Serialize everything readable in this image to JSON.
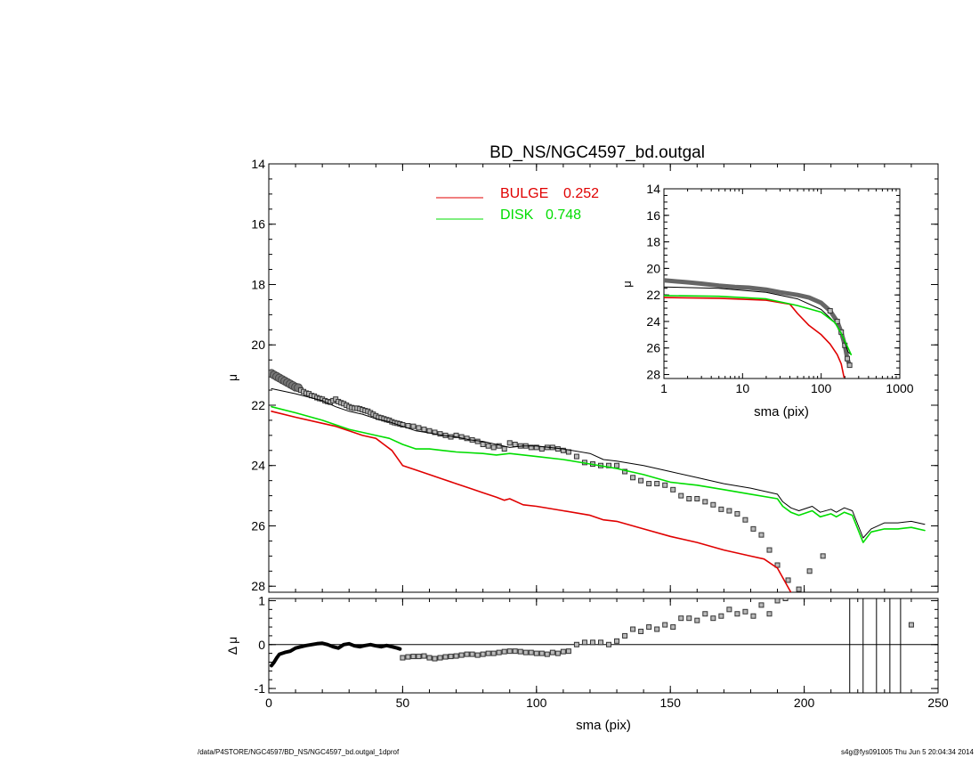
{
  "footer": {
    "left": "/data/P4STORE/NGC4597/BD_NS/NGC4597_bd.outgal_1dprof",
    "right": "s4g@fys091005  Thu Jun  5 20:04:34 2014"
  },
  "chart_data": [
    {
      "type": "line",
      "panel": "main",
      "title": "BD_NS/NGC4597_bd.outgal",
      "xlabel": "",
      "ylabel": "μ",
      "xlim": [
        0,
        250
      ],
      "ylim": [
        14,
        28.2
      ],
      "y_inverted": true,
      "xticks": [
        0,
        50,
        100,
        150,
        200,
        250
      ],
      "yticks": [
        14,
        16,
        18,
        20,
        22,
        24,
        26,
        28
      ],
      "legend_position": "top-center",
      "legend": [
        {
          "label": "BULGE",
          "value": "0.252",
          "color": "#e00000"
        },
        {
          "label": "DISK",
          "value": "0.748",
          "color": "#00dd00"
        }
      ],
      "series": [
        {
          "name": "data",
          "style": "squares",
          "color": "#333333",
          "x": [
            1,
            2,
            3,
            4,
            5,
            6,
            7,
            8,
            9,
            10,
            11,
            12,
            13,
            14,
            15,
            16,
            17,
            18,
            19,
            20,
            21,
            22,
            23,
            24,
            25,
            26,
            27,
            28,
            29,
            30,
            31,
            32,
            33,
            34,
            35,
            36,
            37,
            38,
            39,
            40,
            41,
            42,
            43,
            44,
            45,
            46,
            47,
            48,
            49,
            50,
            52,
            54,
            56,
            58,
            60,
            62,
            64,
            66,
            68,
            70,
            72,
            74,
            76,
            78,
            80,
            82,
            84,
            86,
            88,
            90,
            92,
            94,
            96,
            98,
            100,
            102,
            104,
            106,
            108,
            110,
            112,
            115,
            118,
            121,
            124,
            127,
            130,
            133,
            136,
            139,
            142,
            145,
            148,
            151,
            154,
            157,
            160,
            163,
            166,
            169,
            172,
            175,
            178,
            181,
            184,
            187,
            190,
            194,
            198,
            202,
            207
          ],
          "y": [
            20.95,
            21.0,
            21.05,
            21.1,
            21.15,
            21.2,
            21.25,
            21.3,
            21.35,
            21.4,
            21.42,
            21.5,
            21.55,
            21.6,
            21.62,
            21.68,
            21.7,
            21.75,
            21.78,
            21.8,
            21.85,
            21.88,
            21.9,
            21.85,
            21.8,
            21.88,
            21.92,
            21.95,
            22.0,
            22.05,
            22.08,
            22.1,
            22.1,
            22.12,
            22.15,
            22.18,
            22.2,
            22.25,
            22.3,
            22.35,
            22.4,
            22.42,
            22.45,
            22.48,
            22.5,
            22.55,
            22.58,
            22.6,
            22.62,
            22.65,
            22.68,
            22.7,
            22.75,
            22.8,
            22.85,
            22.9,
            22.95,
            23.0,
            23.05,
            23.0,
            23.05,
            23.1,
            23.15,
            23.2,
            23.3,
            23.35,
            23.4,
            23.35,
            23.45,
            23.25,
            23.3,
            23.35,
            23.35,
            23.4,
            23.4,
            23.45,
            23.4,
            23.4,
            23.45,
            23.5,
            23.55,
            23.7,
            23.9,
            23.95,
            24.0,
            24.0,
            24.0,
            24.2,
            24.4,
            24.5,
            24.6,
            24.6,
            24.65,
            24.8,
            25.0,
            25.1,
            25.1,
            25.2,
            25.3,
            25.45,
            25.5,
            25.6,
            25.8,
            26.1,
            26.3,
            26.8,
            27.3,
            27.8,
            28.1,
            27.5,
            27.0
          ]
        },
        {
          "name": "model",
          "style": "line",
          "color": "#000000",
          "x": [
            1,
            10,
            20,
            25,
            30,
            35,
            40,
            45,
            50,
            55,
            60,
            65,
            70,
            75,
            80,
            85,
            90,
            95,
            100,
            110,
            120,
            125,
            130,
            140,
            150,
            160,
            170,
            180,
            190,
            192,
            195,
            198,
            203,
            206,
            210,
            212,
            215,
            218,
            222,
            225,
            230,
            235,
            240,
            245
          ],
          "y": [
            21.45,
            21.62,
            21.85,
            22.05,
            22.2,
            22.3,
            22.45,
            22.55,
            22.7,
            22.85,
            22.92,
            23.0,
            23.05,
            23.15,
            23.2,
            23.3,
            23.4,
            23.35,
            23.35,
            23.45,
            23.6,
            23.8,
            23.85,
            24.0,
            24.2,
            24.4,
            24.6,
            24.75,
            24.95,
            25.2,
            25.4,
            25.5,
            25.35,
            25.55,
            25.45,
            25.55,
            25.4,
            25.5,
            26.4,
            26.1,
            25.9,
            25.9,
            25.85,
            25.95
          ]
        },
        {
          "name": "BULGE",
          "style": "line",
          "color": "#e00000",
          "x": [
            1,
            10,
            20,
            25,
            30,
            35,
            40,
            43,
            46,
            50,
            55,
            60,
            65,
            70,
            75,
            80,
            85,
            88,
            90,
            95,
            100,
            110,
            120,
            125,
            130,
            140,
            150,
            160,
            170,
            180,
            185,
            190,
            195
          ],
          "y": [
            22.2,
            22.4,
            22.6,
            22.7,
            22.85,
            23.0,
            23.1,
            23.3,
            23.5,
            24.0,
            24.15,
            24.3,
            24.45,
            24.6,
            24.75,
            24.9,
            25.05,
            25.15,
            25.1,
            25.3,
            25.35,
            25.5,
            25.65,
            25.8,
            25.85,
            26.1,
            26.35,
            26.55,
            26.8,
            27.0,
            27.1,
            27.4,
            28.2
          ]
        },
        {
          "name": "DISK",
          "style": "line",
          "color": "#00dd00",
          "x": [
            1,
            10,
            20,
            25,
            30,
            35,
            40,
            45,
            50,
            55,
            60,
            65,
            70,
            80,
            85,
            90,
            100,
            110,
            120,
            130,
            140,
            150,
            160,
            170,
            180,
            190,
            192,
            195,
            198,
            203,
            206,
            210,
            212,
            215,
            218,
            222,
            225,
            230,
            235,
            240,
            245
          ],
          "y": [
            22.05,
            22.25,
            22.5,
            22.65,
            22.8,
            22.9,
            23.0,
            23.1,
            23.3,
            23.45,
            23.45,
            23.5,
            23.55,
            23.6,
            23.65,
            23.6,
            23.7,
            23.8,
            23.95,
            24.1,
            24.3,
            24.55,
            24.65,
            24.8,
            24.95,
            25.1,
            25.35,
            25.55,
            25.65,
            25.5,
            25.7,
            25.6,
            25.7,
            25.55,
            25.65,
            26.55,
            26.2,
            26.1,
            26.1,
            26.05,
            26.15
          ]
        }
      ]
    },
    {
      "type": "line",
      "panel": "inset",
      "xlabel": "sma (pix)",
      "ylabel": "μ",
      "x_scale": "log",
      "xlim": [
        1,
        1000
      ],
      "ylim": [
        14,
        28.3
      ],
      "y_inverted": true,
      "xticks": [
        1,
        10,
        100,
        1000
      ],
      "yticks": [
        14,
        16,
        18,
        20,
        22,
        24,
        26,
        28
      ],
      "series": [
        {
          "name": "data",
          "style": "thick",
          "color": "#555555",
          "x": [
            1,
            2,
            3,
            5,
            8,
            12,
            20,
            30,
            50,
            70,
            100,
            130,
            160,
            180,
            200,
            215,
            230
          ],
          "y": [
            20.9,
            21.05,
            21.15,
            21.3,
            21.4,
            21.45,
            21.6,
            21.8,
            22.0,
            22.2,
            22.6,
            23.2,
            24.0,
            24.8,
            25.8,
            26.8,
            27.3
          ]
        },
        {
          "name": "model",
          "style": "line",
          "color": "#000000",
          "x": [
            1,
            5,
            20,
            50,
            100,
            150,
            180,
            200,
            220,
            240
          ],
          "y": [
            21.4,
            21.5,
            21.8,
            22.3,
            23.1,
            24.1,
            24.9,
            25.6,
            26.3,
            26.5
          ]
        },
        {
          "name": "BULGE",
          "style": "line",
          "color": "#e00000",
          "x": [
            1,
            5,
            20,
            40,
            50,
            70,
            100,
            130,
            160,
            180,
            195
          ],
          "y": [
            22.2,
            22.25,
            22.4,
            22.7,
            23.4,
            24.3,
            25.0,
            25.7,
            26.5,
            27.2,
            28.2
          ]
        },
        {
          "name": "DISK",
          "style": "line",
          "color": "#00dd00",
          "x": [
            1,
            5,
            20,
            50,
            100,
            150,
            180,
            200,
            220,
            240
          ],
          "y": [
            22.05,
            22.1,
            22.3,
            22.8,
            23.3,
            24.1,
            24.9,
            25.5,
            26.0,
            26.5
          ]
        }
      ]
    },
    {
      "type": "scatter",
      "panel": "residual",
      "xlabel": "sma (pix)",
      "ylabel": "Δ μ",
      "xlim": [
        0,
        250
      ],
      "ylim": [
        -1.1,
        1.05
      ],
      "xticks": [
        0,
        50,
        100,
        150,
        200,
        250
      ],
      "yticks": [
        -1,
        0,
        1
      ],
      "reference_line": 0,
      "vertical_lines": [
        217,
        222,
        227,
        232,
        236
      ],
      "series": [
        {
          "name": "residual-inner",
          "style": "thick",
          "color": "#000000",
          "x": [
            1,
            2,
            3,
            4,
            5,
            6,
            8,
            10,
            12,
            14,
            16,
            18,
            20,
            22,
            24,
            26,
            28,
            30,
            32,
            34,
            36,
            38,
            40,
            42,
            44,
            46,
            48,
            49
          ],
          "y": [
            -0.48,
            -0.4,
            -0.3,
            -0.22,
            -0.2,
            -0.18,
            -0.15,
            -0.08,
            -0.05,
            -0.02,
            0.0,
            0.02,
            0.03,
            0.0,
            -0.05,
            -0.08,
            0.0,
            0.02,
            -0.03,
            -0.05,
            -0.02,
            0.0,
            -0.03,
            -0.05,
            -0.02,
            -0.05,
            -0.08,
            -0.1
          ]
        },
        {
          "name": "residual",
          "style": "squares",
          "color": "#333333",
          "x": [
            50,
            52,
            54,
            56,
            58,
            60,
            62,
            64,
            66,
            68,
            70,
            72,
            74,
            76,
            78,
            80,
            82,
            84,
            86,
            88,
            90,
            92,
            94,
            96,
            98,
            100,
            102,
            104,
            106,
            108,
            110,
            112,
            115,
            118,
            121,
            124,
            127,
            130,
            133,
            136,
            139,
            142,
            145,
            148,
            151,
            154,
            157,
            160,
            163,
            166,
            169,
            172,
            175,
            178,
            181,
            184,
            187,
            190,
            193,
            240
          ],
          "y": [
            -0.3,
            -0.28,
            -0.27,
            -0.27,
            -0.26,
            -0.3,
            -0.32,
            -0.3,
            -0.28,
            -0.27,
            -0.26,
            -0.24,
            -0.22,
            -0.22,
            -0.24,
            -0.22,
            -0.2,
            -0.2,
            -0.18,
            -0.16,
            -0.15,
            -0.15,
            -0.16,
            -0.18,
            -0.18,
            -0.2,
            -0.2,
            -0.22,
            -0.18,
            -0.2,
            -0.16,
            -0.15,
            0.0,
            0.05,
            0.05,
            0.05,
            0.0,
            0.08,
            0.2,
            0.35,
            0.3,
            0.4,
            0.35,
            0.45,
            0.4,
            0.6,
            0.6,
            0.55,
            0.7,
            0.6,
            0.65,
            0.8,
            0.7,
            0.75,
            0.65,
            0.9,
            0.7,
            1.0,
            1.05,
            0.45
          ]
        }
      ]
    }
  ]
}
